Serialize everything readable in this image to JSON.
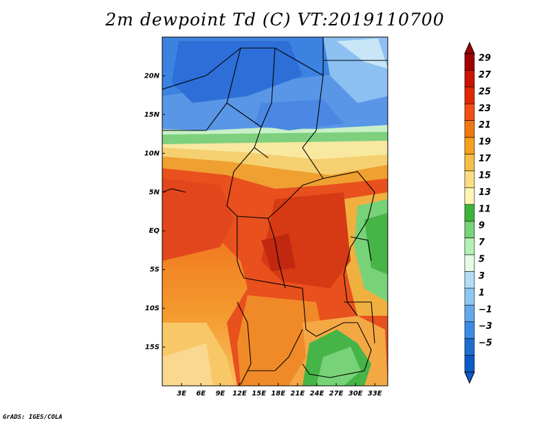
{
  "title": "2m dewpoint Td (C) VT:2019110700",
  "credit": "GrADS: IGES/COLA",
  "map": {
    "lat_ticks": [
      "20N",
      "15N",
      "10N",
      "5N",
      "EQ",
      "5S",
      "10S",
      "15S"
    ],
    "lon_ticks": [
      "3E",
      "6E",
      "9E",
      "12E",
      "15E",
      "18E",
      "21E",
      "24E",
      "27E",
      "30E",
      "33E"
    ],
    "lat_range": [
      -20,
      25
    ],
    "lon_range": [
      0,
      35
    ]
  },
  "colorbar": {
    "labels": [
      "29",
      "27",
      "25",
      "23",
      "21",
      "19",
      "17",
      "15",
      "13",
      "11",
      "9",
      "7",
      "5",
      "3",
      "1",
      "−1",
      "−3",
      "−5"
    ],
    "colors": [
      "#a00000",
      "#c81400",
      "#e02800",
      "#f05014",
      "#f07814",
      "#f5a01e",
      "#f5be46",
      "#fadc82",
      "#fff5b4",
      "#3cb43c",
      "#78d278",
      "#b4f0b4",
      "#e6fae6",
      "#b4dcf5",
      "#8cc8f0",
      "#64aaeb",
      "#3c8ce6",
      "#1e6ed2",
      "#0a5ac8"
    ]
  },
  "legend_colors": {
    "blue_dry": "#5a96e6",
    "red_humid": "#e8461e",
    "orange": "#f08c28",
    "green": "#46b446"
  }
}
